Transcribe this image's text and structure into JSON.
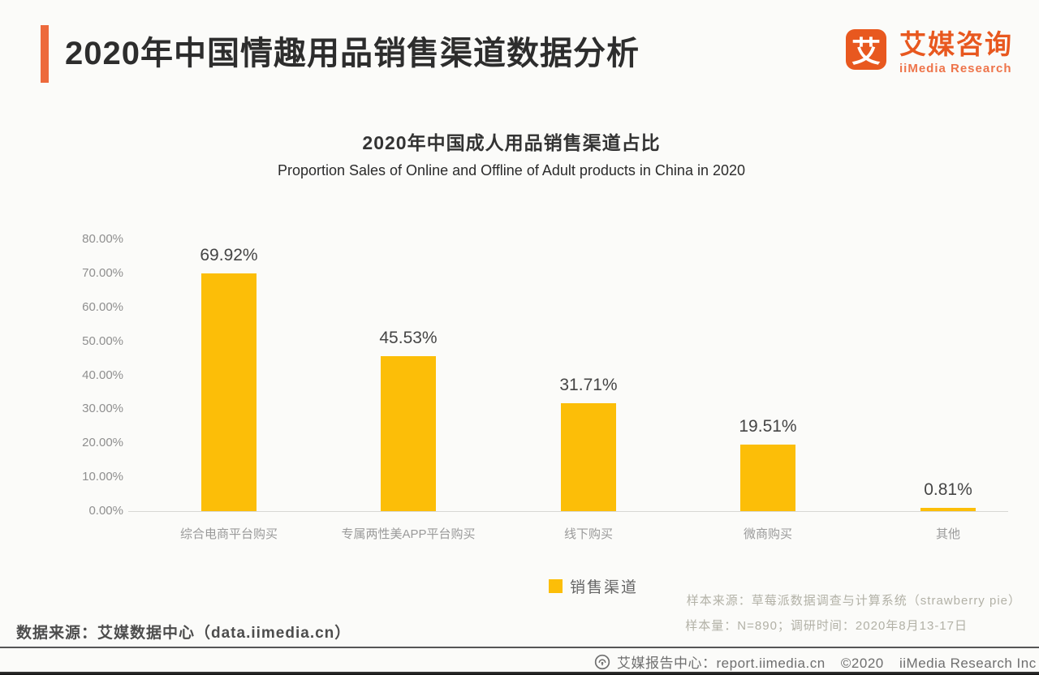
{
  "header": {
    "title": "2020年中国情趣用品销售渠道数据分析",
    "accent_color": "#ED6A3C",
    "logo": {
      "mark": "艾",
      "name_cn": "艾媒咨询",
      "name_en": "iiMedia Research",
      "color": "#E8581F"
    }
  },
  "chart": {
    "title_cn": "2020年中国成人用品销售渠道占比",
    "title_en": "Proportion Sales of Online and Offline of Adult products in China in 2020",
    "legend": {
      "label": "销售渠道",
      "swatch_color": "#FCBE08"
    }
  },
  "chart_data": {
    "type": "bar",
    "categories": [
      "综合电商平台购买",
      "专属两性美APP平台购买",
      "线下购买",
      "微商购买",
      "其他"
    ],
    "values": [
      69.92,
      45.53,
      31.71,
      19.51,
      0.81
    ],
    "value_labels": [
      "69.92%",
      "45.53%",
      "31.71%",
      "19.51%",
      "0.81%"
    ],
    "y_ticks": [
      "80.00%",
      "70.00%",
      "60.00%",
      "50.00%",
      "40.00%",
      "30.00%",
      "20.00%",
      "10.00%",
      "0.00%"
    ],
    "ylim": [
      0,
      80
    ],
    "bar_color": "#FCBE08",
    "grid": false,
    "legend_position": "bottom",
    "title": "2020年中国成人用品销售渠道占比",
    "subtitle": "Proportion Sales of Online and Offline of Adult products in China in 2020",
    "xlabel": "",
    "ylabel": ""
  },
  "notes": {
    "sample_source": "样本来源：草莓派数据调查与计算系统（strawberry pie）",
    "sample_info": "样本量：N=890；调研时间：2020年8月13-17日"
  },
  "footer": {
    "data_source": "数据来源：艾媒数据中心（data.iimedia.cn）",
    "report_center": "艾媒报告中心：report.iimedia.cn",
    "copyright": "©2020",
    "company": "iiMedia Research Inc"
  }
}
